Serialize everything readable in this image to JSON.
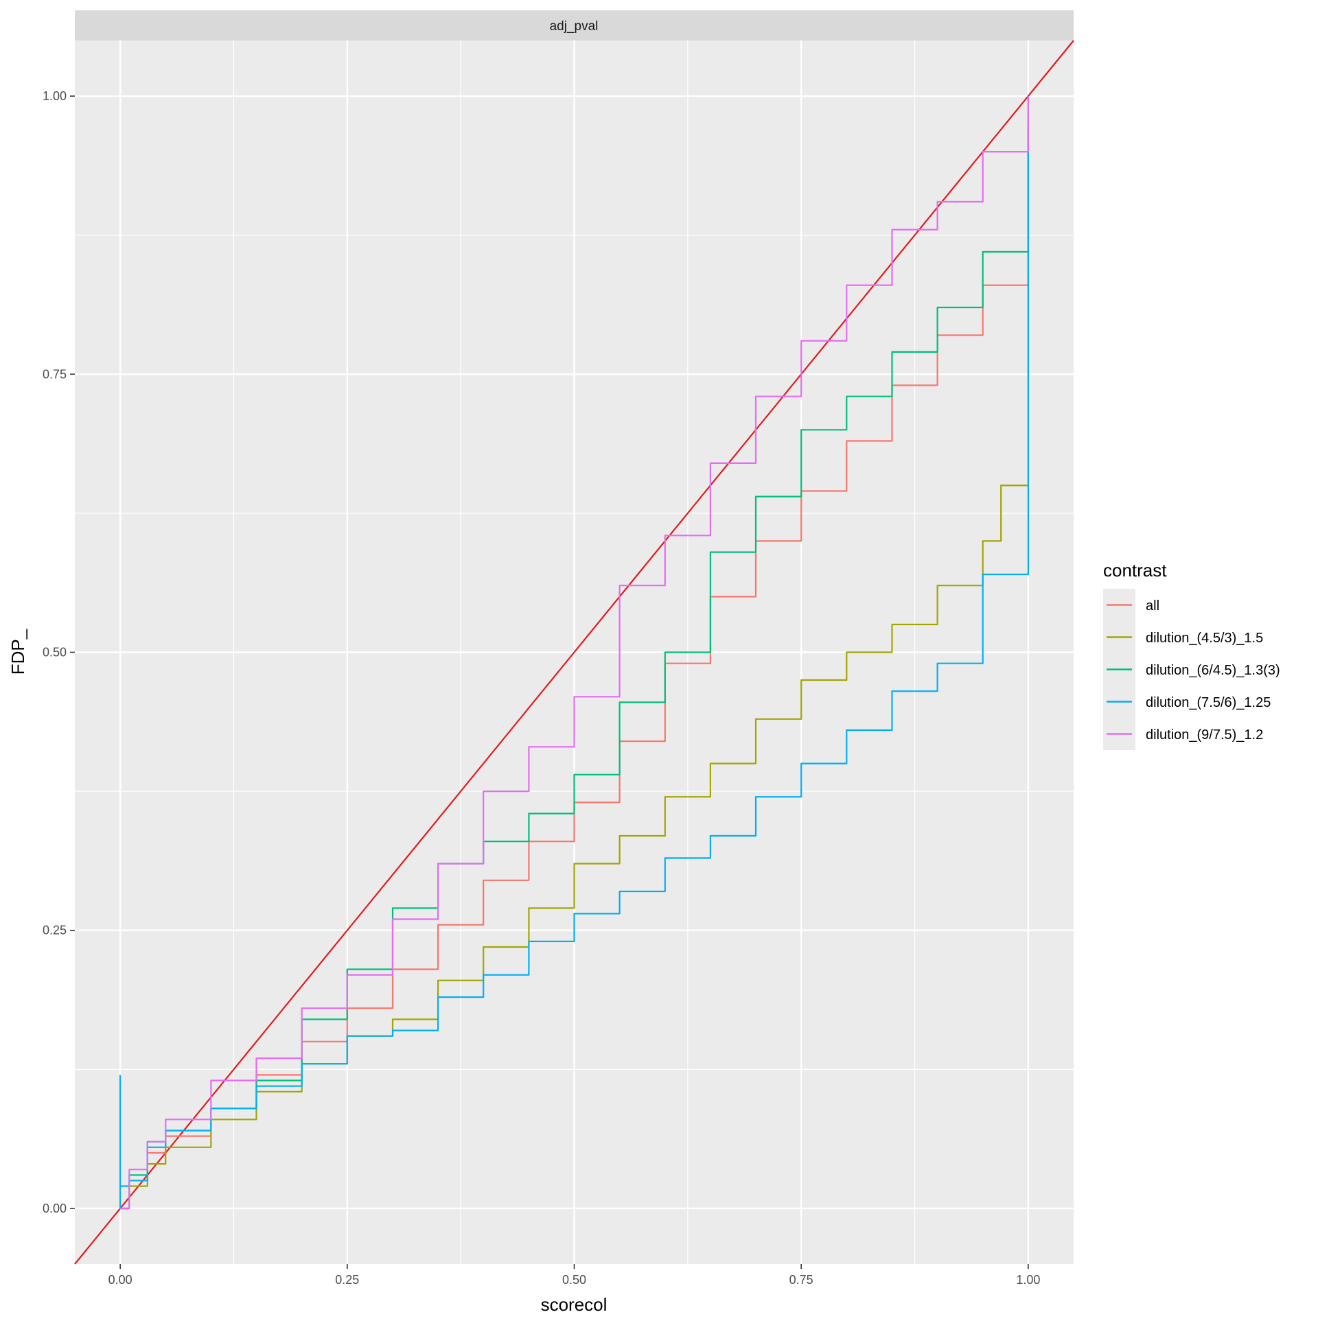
{
  "chart_data": {
    "type": "line",
    "facet_label": "adj_pval",
    "xlabel": "scorecol",
    "ylabel": "FDP_",
    "xlim": [
      -0.05,
      1.05
    ],
    "ylim": [
      -0.05,
      1.05
    ],
    "x_ticks": [
      0,
      0.25,
      0.5,
      0.75,
      1
    ],
    "x_tick_labels": [
      "0.00",
      "0.25",
      "0.50",
      "0.75",
      "1.00"
    ],
    "y_ticks": [
      0,
      0.25,
      0.5,
      0.75,
      1
    ],
    "y_tick_labels": [
      "0.00",
      "0.25",
      "0.50",
      "0.75",
      "1.00"
    ],
    "grid": true,
    "legend_title": "contrast",
    "legend_position": "right",
    "reference_line": {
      "slope": 1,
      "intercept": 0,
      "color": "#E41A1C"
    },
    "series": [
      {
        "name": "all",
        "color": "#F8766D",
        "x": [
          0,
          0.01,
          0.03,
          0.05,
          0.1,
          0.15,
          0.2,
          0.25,
          0.3,
          0.35,
          0.4,
          0.45,
          0.5,
          0.55,
          0.6,
          0.65,
          0.7,
          0.75,
          0.8,
          0.85,
          0.9,
          0.95,
          1,
          1
        ],
        "y": [
          0,
          0.025,
          0.05,
          0.065,
          0.09,
          0.12,
          0.15,
          0.18,
          0.215,
          0.255,
          0.295,
          0.33,
          0.365,
          0.42,
          0.49,
          0.55,
          0.6,
          0.645,
          0.69,
          0.74,
          0.785,
          0.83,
          0.875,
          1.0
        ]
      },
      {
        "name": "dilution_(4.5/3)_1.5",
        "color": "#A3A500",
        "x": [
          0,
          0.01,
          0.03,
          0.05,
          0.1,
          0.15,
          0.2,
          0.25,
          0.3,
          0.35,
          0.4,
          0.45,
          0.5,
          0.55,
          0.6,
          0.65,
          0.7,
          0.75,
          0.8,
          0.85,
          0.9,
          0.95,
          0.97,
          1,
          1
        ],
        "y": [
          0,
          0.02,
          0.04,
          0.055,
          0.08,
          0.105,
          0.13,
          0.155,
          0.17,
          0.205,
          0.235,
          0.27,
          0.31,
          0.335,
          0.37,
          0.4,
          0.44,
          0.475,
          0.5,
          0.525,
          0.56,
          0.6,
          0.65,
          0.69,
          0.99
        ]
      },
      {
        "name": "dilution_(6/4.5)_1.3(3)",
        "color": "#00BF7D",
        "x": [
          0,
          0.01,
          0.03,
          0.05,
          0.1,
          0.15,
          0.2,
          0.25,
          0.3,
          0.35,
          0.4,
          0.45,
          0.5,
          0.55,
          0.6,
          0.65,
          0.7,
          0.75,
          0.8,
          0.85,
          0.9,
          0.95,
          1,
          1
        ],
        "y": [
          0,
          0.03,
          0.06,
          0.07,
          0.09,
          0.115,
          0.17,
          0.215,
          0.27,
          0.31,
          0.33,
          0.355,
          0.39,
          0.455,
          0.5,
          0.59,
          0.64,
          0.7,
          0.73,
          0.77,
          0.81,
          0.86,
          0.93,
          0.98
        ]
      },
      {
        "name": "dilution_(7.5/6)_1.25",
        "color": "#00B0F6",
        "x": [
          0,
          0,
          0,
          0.01,
          0.03,
          0.05,
          0.1,
          0.15,
          0.2,
          0.25,
          0.3,
          0.35,
          0.4,
          0.45,
          0.5,
          0.55,
          0.6,
          0.65,
          0.7,
          0.75,
          0.8,
          0.85,
          0.9,
          0.95,
          1,
          1
        ],
        "y": [
          0.12,
          0,
          0.02,
          0.025,
          0.055,
          0.07,
          0.09,
          0.11,
          0.13,
          0.155,
          0.16,
          0.19,
          0.21,
          0.24,
          0.265,
          0.285,
          0.315,
          0.335,
          0.37,
          0.4,
          0.43,
          0.465,
          0.49,
          0.57,
          0.61,
          0.97
        ]
      },
      {
        "name": "dilution_(9/7.5)_1.2",
        "color": "#E76BF3",
        "x": [
          0,
          0.01,
          0.03,
          0.05,
          0.1,
          0.15,
          0.2,
          0.25,
          0.3,
          0.35,
          0.4,
          0.45,
          0.5,
          0.55,
          0.6,
          0.65,
          0.7,
          0.75,
          0.8,
          0.85,
          0.9,
          0.95,
          1,
          1
        ],
        "y": [
          0,
          0.035,
          0.06,
          0.08,
          0.115,
          0.135,
          0.18,
          0.21,
          0.26,
          0.31,
          0.375,
          0.415,
          0.46,
          0.56,
          0.605,
          0.67,
          0.73,
          0.78,
          0.83,
          0.88,
          0.905,
          0.95,
          0.975,
          1.0
        ]
      }
    ]
  }
}
